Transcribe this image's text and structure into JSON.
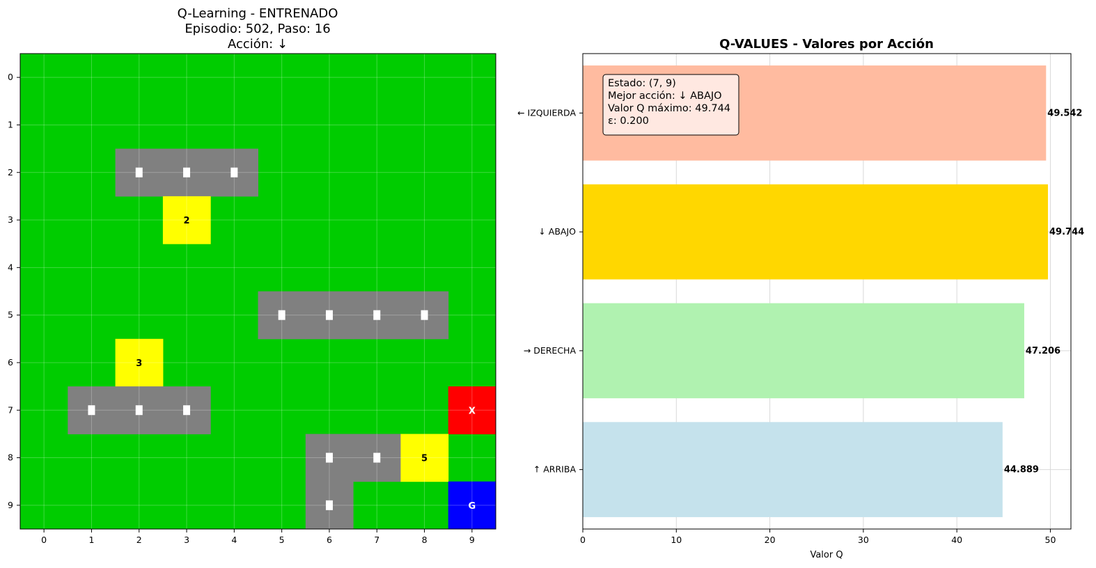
{
  "chart_data": [
    {
      "type": "heatmap",
      "title_lines": [
        "Q-Learning - ENTRENADO",
        "Episodio: 502, Paso: 16",
        "Acción: ↓"
      ],
      "grid_size": 10,
      "x_ticks": [
        "0",
        "1",
        "2",
        "3",
        "4",
        "5",
        "6",
        "7",
        "8",
        "9"
      ],
      "y_ticks": [
        "0",
        "1",
        "2",
        "3",
        "4",
        "5",
        "6",
        "7",
        "8",
        "9"
      ],
      "colors": {
        "free": "#00cc00",
        "road": "#808080",
        "stop": "#ffff00",
        "agent": "#ff0000",
        "goal": "#0000ff",
        "marker": "#ffffff"
      },
      "cells": [
        {
          "row": 2,
          "col": 2,
          "kind": "road",
          "label": ""
        },
        {
          "row": 2,
          "col": 3,
          "kind": "road",
          "label": ""
        },
        {
          "row": 2,
          "col": 4,
          "kind": "road",
          "label": ""
        },
        {
          "row": 3,
          "col": 3,
          "kind": "stop",
          "label": "2"
        },
        {
          "row": 5,
          "col": 5,
          "kind": "road",
          "label": ""
        },
        {
          "row": 5,
          "col": 6,
          "kind": "road",
          "label": ""
        },
        {
          "row": 5,
          "col": 7,
          "kind": "road",
          "label": ""
        },
        {
          "row": 5,
          "col": 8,
          "kind": "road",
          "label": ""
        },
        {
          "row": 6,
          "col": 2,
          "kind": "stop",
          "label": "3"
        },
        {
          "row": 7,
          "col": 1,
          "kind": "road",
          "label": ""
        },
        {
          "row": 7,
          "col": 2,
          "kind": "road",
          "label": ""
        },
        {
          "row": 7,
          "col": 3,
          "kind": "road",
          "label": ""
        },
        {
          "row": 7,
          "col": 9,
          "kind": "agent",
          "label": "X"
        },
        {
          "row": 8,
          "col": 6,
          "kind": "road",
          "label": ""
        },
        {
          "row": 8,
          "col": 7,
          "kind": "road",
          "label": ""
        },
        {
          "row": 8,
          "col": 8,
          "kind": "stop",
          "label": "5"
        },
        {
          "row": 9,
          "col": 6,
          "kind": "road",
          "label": ""
        },
        {
          "row": 9,
          "col": 9,
          "kind": "goal",
          "label": "G"
        }
      ]
    },
    {
      "type": "bar",
      "orientation": "horizontal",
      "title": "Q-VALUES - Valores por Acción",
      "xlabel": "Valor Q",
      "xlim": [
        0,
        52.2
      ],
      "x_ticks": [
        0,
        10,
        20,
        30,
        40,
        50
      ],
      "grid": true,
      "categories": [
        "← IZQUIERDA",
        "↓ ABAJO",
        "→ DERECHA",
        "↑ ARRIBA"
      ],
      "values": [
        49.542,
        49.744,
        47.206,
        44.889
      ],
      "value_labels": [
        "49.542",
        "49.744",
        "47.206",
        "44.889"
      ],
      "bar_colors": [
        "#ffbba0",
        "#ffd700",
        "#b0f2b0",
        "#c5e2ec"
      ],
      "info_box": {
        "lines": [
          "Estado: (7, 9)",
          "Mejor acción: ↓ ABAJO",
          "Valor Q máximo: 49.744",
          "ε: 0.200"
        ],
        "background": "#fff0ec"
      }
    }
  ]
}
